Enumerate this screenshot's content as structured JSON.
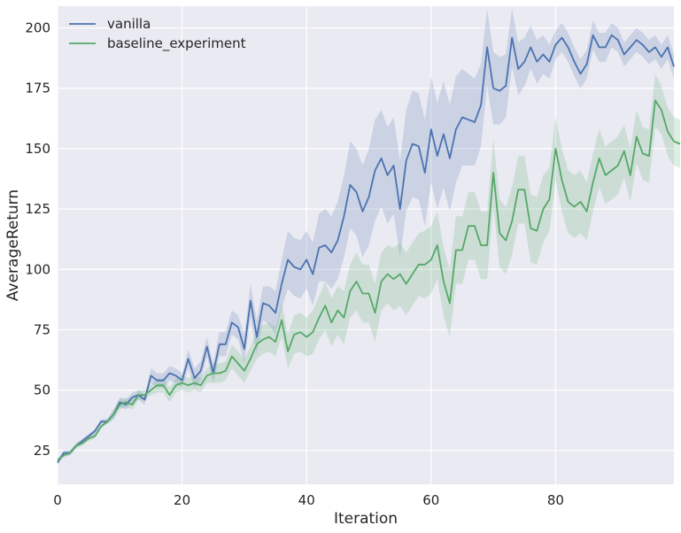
{
  "chart_data": {
    "type": "line",
    "title": "",
    "xlabel": "Iteration",
    "ylabel": "AverageReturn",
    "xlim": [
      0,
      99
    ],
    "ylim": [
      11,
      209
    ],
    "xticks": [
      0,
      20,
      40,
      60,
      80
    ],
    "yticks": [
      25,
      50,
      75,
      100,
      125,
      150,
      175,
      200
    ],
    "grid": true,
    "legend_position": "top-left",
    "x_start": 0,
    "x_step": 1,
    "series": [
      {
        "name": "vanilla",
        "color": "#4c72b0",
        "mean": [
          20,
          24,
          24,
          27,
          29,
          31,
          33,
          37,
          37,
          40,
          45,
          44,
          47,
          48,
          46,
          56,
          54,
          54,
          57,
          56,
          54,
          63,
          55,
          58,
          68,
          57,
          69,
          69,
          78,
          76,
          67,
          87,
          72,
          86,
          85,
          82,
          94,
          104,
          101,
          100,
          104,
          98,
          109,
          110,
          107,
          112,
          122,
          135,
          132,
          124,
          130,
          141,
          146,
          139,
          143,
          125,
          145,
          152,
          151,
          140,
          158,
          147,
          156,
          146,
          158,
          163,
          162,
          161,
          168,
          192,
          175,
          174,
          176,
          196,
          183,
          186,
          192,
          186,
          189,
          186,
          193,
          196,
          192,
          186,
          181,
          185,
          197,
          192,
          192,
          197,
          195,
          189,
          192,
          195,
          193,
          190,
          192,
          188,
          192,
          184
        ],
        "band_width": [
          1,
          1,
          1,
          1,
          1,
          1,
          1,
          1,
          1,
          2,
          2,
          2,
          2,
          2,
          2,
          3,
          3,
          3,
          3,
          3,
          3,
          4,
          4,
          4,
          4,
          4,
          5,
          5,
          5,
          5,
          6,
          7,
          7,
          7,
          8,
          9,
          10,
          12,
          12,
          12,
          12,
          13,
          14,
          15,
          15,
          16,
          17,
          18,
          18,
          19,
          20,
          21,
          20,
          20,
          20,
          20,
          21,
          22,
          22,
          22,
          22,
          22,
          22,
          22,
          22,
          20,
          19,
          18,
          17,
          16,
          15,
          14,
          13,
          12,
          11,
          10,
          9,
          9,
          8,
          7,
          6,
          6,
          6,
          6,
          6,
          6,
          6,
          6,
          6,
          5,
          5,
          5,
          5,
          5,
          5,
          5,
          5,
          5,
          5,
          5
        ]
      },
      {
        "name": "baseline_experiment",
        "color": "#55a868",
        "mean": [
          21,
          23,
          24,
          27,
          28,
          30,
          31,
          35,
          37,
          40,
          44,
          45,
          44,
          48,
          48,
          50,
          52,
          52,
          48,
          52,
          53,
          52,
          53,
          52,
          56,
          57,
          57,
          58,
          64,
          61,
          58,
          63,
          69,
          71,
          72,
          70,
          79,
          66,
          73,
          74,
          72,
          74,
          80,
          85,
          78,
          83,
          80,
          91,
          95,
          90,
          90,
          82,
          95,
          98,
          96,
          98,
          94,
          98,
          102,
          102,
          104,
          110,
          95,
          86,
          108,
          108,
          118,
          118,
          110,
          110,
          140,
          115,
          112,
          120,
          133,
          133,
          117,
          116,
          125,
          129,
          150,
          137,
          128,
          126,
          128,
          124,
          136,
          146,
          139,
          141,
          143,
          149,
          139,
          155,
          148,
          147,
          170,
          166,
          157,
          153,
          152
        ],
        "band_width": [
          1,
          1,
          1,
          1,
          1,
          1,
          1,
          1,
          1,
          2,
          2,
          2,
          2,
          2,
          2,
          2,
          3,
          3,
          3,
          3,
          3,
          3,
          3,
          3,
          3,
          4,
          4,
          4,
          5,
          5,
          5,
          5,
          6,
          6,
          6,
          6,
          7,
          7,
          8,
          8,
          8,
          9,
          9,
          10,
          10,
          10,
          11,
          11,
          12,
          12,
          12,
          12,
          12,
          12,
          13,
          13,
          13,
          13,
          13,
          14,
          14,
          14,
          14,
          14,
          14,
          14,
          14,
          14,
          14,
          14,
          14,
          14,
          14,
          14,
          14,
          14,
          14,
          14,
          14,
          13,
          13,
          13,
          13,
          13,
          13,
          12,
          12,
          12,
          12,
          12,
          12,
          11,
          11,
          11,
          11,
          11,
          11,
          10,
          10,
          10,
          10
        ]
      }
    ]
  }
}
